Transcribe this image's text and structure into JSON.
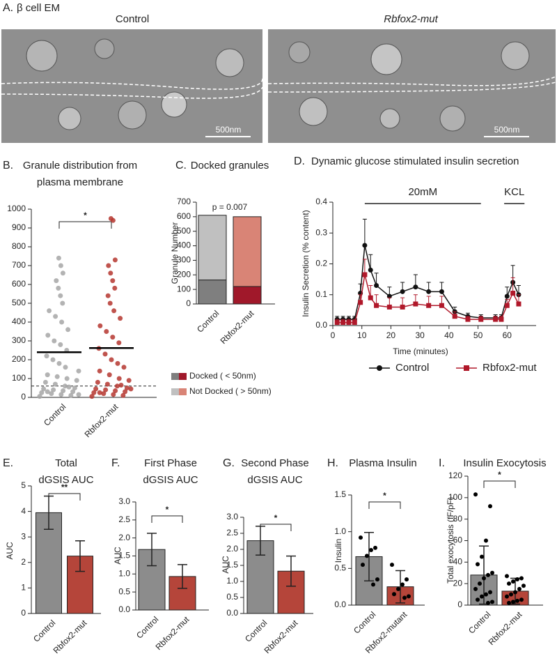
{
  "em_panel": {
    "label": "A.",
    "title": "β cell EM",
    "images": [
      {
        "title": "Control",
        "scale_bar": "500nm"
      },
      {
        "title": "Rbfox2-mut",
        "scale_bar": "500nm"
      }
    ]
  },
  "chart_data": [
    {
      "type": "strip",
      "label": "B.",
      "title": [
        "Granule distribution from",
        "plasma membrane"
      ],
      "categories": [
        "Control",
        "Rbfox2-mut"
      ],
      "colors": [
        "#a6a6a6",
        "#b5362f"
      ],
      "points": [
        [
          5,
          10,
          15,
          20,
          25,
          30,
          35,
          40,
          45,
          50,
          60,
          70,
          80,
          90,
          100,
          110,
          120,
          140,
          160,
          180,
          200,
          220,
          250,
          280,
          300,
          330,
          360,
          400,
          430,
          460,
          500,
          540,
          580,
          620,
          660,
          700,
          740,
          30,
          15,
          55
        ],
        [
          5,
          10,
          15,
          20,
          25,
          30,
          35,
          40,
          45,
          50,
          60,
          70,
          80,
          90,
          100,
          120,
          140,
          160,
          180,
          200,
          230,
          260,
          290,
          320,
          350,
          380,
          420,
          460,
          500,
          540,
          580,
          620,
          660,
          700,
          730,
          940,
          950,
          25,
          45,
          65
        ]
      ],
      "means": [
        240,
        262
      ],
      "reference_line": 60,
      "significance": "*",
      "ylim": [
        0,
        1000
      ],
      "yticks": [
        0,
        100,
        200,
        300,
        400,
        500,
        600,
        700,
        800,
        900,
        1000
      ]
    },
    {
      "type": "stacked_bar",
      "label": "C.",
      "title": [
        "Docked granules"
      ],
      "ylabel": "Granule Number",
      "annotation": "p = 0.007",
      "categories": [
        "Control",
        "Rbfox2-mut"
      ],
      "series": [
        {
          "name": "Docked ( < 50nm)",
          "colors": [
            "#7f7f7f",
            "#a0182a"
          ],
          "values": [
            165,
            120
          ]
        },
        {
          "name": "Not Docked ( > 50nm)",
          "colors": [
            "#c0c0c0",
            "#d98476"
          ],
          "values": [
            445,
            480
          ]
        }
      ],
      "ylim": [
        0,
        700
      ],
      "yticks": [
        0,
        100,
        200,
        300,
        400,
        500,
        600,
        700
      ]
    },
    {
      "type": "line",
      "label": "D.",
      "title": [
        "Dynamic glucose stimulated insulin secretion"
      ],
      "xlabel": "Time (minutes)",
      "ylabel": "Insulin Secretion (% content)",
      "x": [
        1.5,
        3.5,
        5.5,
        7.5,
        9.5,
        11,
        13,
        15,
        19.5,
        24,
        28.5,
        33,
        37.5,
        42,
        46.5,
        51,
        56,
        58,
        60,
        62,
        64
      ],
      "series": [
        {
          "name": "Control",
          "color": "#111111",
          "marker": "circle",
          "values": [
            0.02,
            0.02,
            0.02,
            0.02,
            0.105,
            0.26,
            0.18,
            0.13,
            0.095,
            0.11,
            0.125,
            0.11,
            0.11,
            0.045,
            0.03,
            0.025,
            0.025,
            0.025,
            0.095,
            0.14,
            0.1
          ],
          "errors": [
            0.01,
            0.01,
            0.01,
            0.01,
            0.03,
            0.085,
            0.05,
            0.04,
            0.03,
            0.03,
            0.04,
            0.03,
            0.03,
            0.015,
            0.01,
            0.01,
            0.01,
            0.01,
            0.03,
            0.055,
            0.03
          ]
        },
        {
          "name": "Rbfox2-mut",
          "color": "#b0182a",
          "marker": "square",
          "values": [
            0.01,
            0.01,
            0.01,
            0.01,
            0.075,
            0.165,
            0.09,
            0.065,
            0.06,
            0.06,
            0.07,
            0.065,
            0.065,
            0.03,
            0.02,
            0.02,
            0.02,
            0.02,
            0.065,
            0.105,
            0.07
          ],
          "errors": [
            0.01,
            0.01,
            0.01,
            0.01,
            0.025,
            0.05,
            0.04,
            0.035,
            0.03,
            0.03,
            0.03,
            0.03,
            0.03,
            0.015,
            0.01,
            0.01,
            0.01,
            0.01,
            0.02,
            0.05,
            0.03
          ]
        }
      ],
      "periods": [
        {
          "label": "20mM",
          "x": [
            11,
            51
          ]
        },
        {
          "label": "KCL",
          "x": [
            59,
            66
          ]
        }
      ],
      "xlim": [
        0,
        70
      ],
      "xticks": [
        0,
        10,
        20,
        30,
        40,
        50,
        60
      ],
      "ylim": [
        0,
        0.4
      ],
      "yticks": [
        {
          "value": 0,
          "label": "0.0"
        },
        0.1,
        0.2,
        0.3,
        0.4
      ]
    },
    {
      "type": "bar",
      "label": "E.",
      "title": [
        "Total",
        "dGSIS AUC"
      ],
      "ylabel": "AUC",
      "significance": "**",
      "categories": [
        "Control",
        "Rbfox2-mut"
      ],
      "colors": [
        "#8c8c8c",
        "#b5453a"
      ],
      "values": [
        3.95,
        2.25
      ],
      "errors": [
        0.65,
        0.6
      ],
      "ylim": [
        0,
        5
      ],
      "yticks": [
        0,
        1,
        2,
        3,
        4,
        5
      ]
    },
    {
      "type": "bar",
      "label": "F.",
      "title": [
        "First Phase",
        "dGSIS AUC"
      ],
      "ylabel": "AUC",
      "significance": "*",
      "categories": [
        "Control",
        "Rbfox2-mut"
      ],
      "colors": [
        "#8c8c8c",
        "#b5453a"
      ],
      "values": [
        1.68,
        0.93
      ],
      "errors": [
        0.45,
        0.33
      ],
      "ylim": [
        0,
        3
      ],
      "yticks": [
        {
          "value": 0,
          "label": "0.0"
        },
        0.5,
        {
          "value": 1,
          "label": "1.0"
        },
        1.5,
        {
          "value": 2,
          "label": "2.0"
        },
        2.5,
        {
          "value": 3,
          "label": "3.0"
        }
      ]
    },
    {
      "type": "bar",
      "label": "G.",
      "title": [
        "Second Phase",
        "dGSIS AUC"
      ],
      "ylabel": "AUC",
      "significance": "*",
      "categories": [
        "Control",
        "Rbfox2-mut"
      ],
      "colors": [
        "#8c8c8c",
        "#b5453a"
      ],
      "values": [
        2.27,
        1.32
      ],
      "errors": [
        0.45,
        0.47
      ],
      "ylim": [
        0,
        3
      ],
      "yticks": [
        {
          "value": 0,
          "label": "0.0"
        },
        0.5,
        {
          "value": 1,
          "label": "1.0"
        },
        1.5,
        {
          "value": 2,
          "label": "2.0"
        },
        2.5,
        {
          "value": 3,
          "label": "3.0"
        }
      ]
    },
    {
      "type": "bar",
      "label": "H.",
      "title": [
        "Plasma Insulin"
      ],
      "ylabel": "Insulin",
      "significance": "*",
      "categories": [
        "Control",
        "Rbfox2-mutant"
      ],
      "colors": [
        "#8c8c8c",
        "#b5453a"
      ],
      "values": [
        0.66,
        0.25
      ],
      "errors": [
        0.33,
        0.22
      ],
      "points": [
        [
          0.92,
          0.78,
          0.75,
          0.67,
          0.55,
          0.35,
          0.28
        ],
        [
          0.55,
          0.35,
          0.28,
          0.22,
          0.15,
          0.12,
          0.1
        ]
      ],
      "ylim": [
        0,
        1.5
      ],
      "yticks": [
        {
          "value": 0,
          "label": "0.0"
        },
        0.5,
        {
          "value": 1,
          "label": "1.0"
        },
        1.5
      ]
    },
    {
      "type": "bar",
      "label": "I.",
      "title": [
        "Insulin Exocytosis"
      ],
      "ylabel": "Total exocytosis (fF/pF)",
      "significance": "*",
      "categories": [
        "Control",
        "Rbfox2-mut"
      ],
      "colors": [
        "#8c8c8c",
        "#b5453a"
      ],
      "values": [
        28,
        13
      ],
      "errors": [
        27,
        12
      ],
      "points": [
        [
          103,
          92,
          60,
          45,
          38,
          30,
          28,
          25,
          20,
          15,
          12,
          10,
          8,
          5,
          3,
          2
        ],
        [
          27,
          25,
          24,
          22,
          20,
          18,
          15,
          12,
          10,
          8,
          5,
          4,
          3,
          2
        ]
      ],
      "ylim": [
        0,
        120
      ],
      "yticks": [
        0,
        20,
        40,
        60,
        80,
        100,
        120
      ]
    }
  ]
}
